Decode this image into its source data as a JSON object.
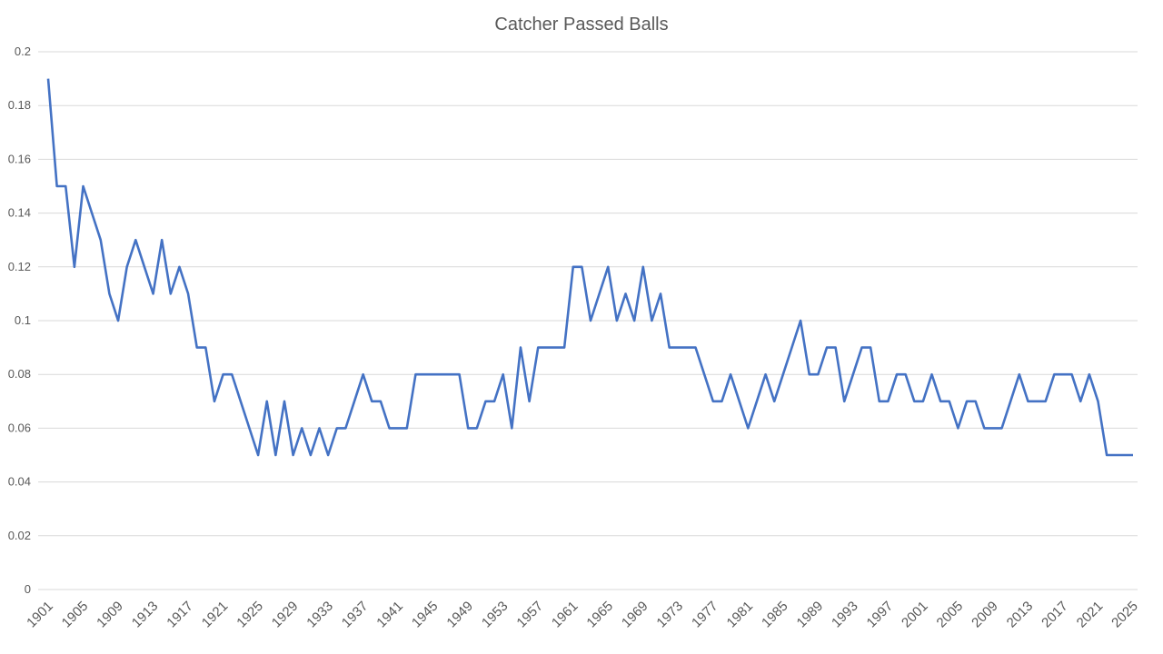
{
  "chart_data": {
    "type": "line",
    "title": "Catcher Passed Balls",
    "xlabel": "",
    "ylabel": "",
    "ylim": [
      0,
      0.2
    ],
    "yticks": [
      "0",
      "0.02",
      "0.04",
      "0.06",
      "0.08",
      "0.1",
      "0.12",
      "0.14",
      "0.16",
      "0.18",
      "0.2"
    ],
    "grid": true,
    "legend": "none",
    "x_start": 1901,
    "x_end": 2025,
    "xtick_step": 4,
    "series": [
      {
        "name": "Catcher Passed Balls",
        "color": "#4472c4",
        "values": [
          0.19,
          0.15,
          0.15,
          0.12,
          0.15,
          0.14,
          0.13,
          0.11,
          0.1,
          0.12,
          0.13,
          0.12,
          0.11,
          0.13,
          0.11,
          0.12,
          0.11,
          0.09,
          0.09,
          0.07,
          0.08,
          0.08,
          0.07,
          0.06,
          0.05,
          0.07,
          0.05,
          0.07,
          0.05,
          0.06,
          0.05,
          0.06,
          0.05,
          0.06,
          0.06,
          0.07,
          0.08,
          0.07,
          0.07,
          0.06,
          0.06,
          0.06,
          0.08,
          0.08,
          0.08,
          0.08,
          0.08,
          0.08,
          0.06,
          0.06,
          0.07,
          0.07,
          0.08,
          0.06,
          0.09,
          0.07,
          0.09,
          0.09,
          0.09,
          0.09,
          0.12,
          0.12,
          0.1,
          0.11,
          0.12,
          0.1,
          0.11,
          0.1,
          0.12,
          0.1,
          0.11,
          0.09,
          0.09,
          0.09,
          0.09,
          0.08,
          0.07,
          0.07,
          0.08,
          0.07,
          0.06,
          0.07,
          0.08,
          0.07,
          0.08,
          0.09,
          0.1,
          0.08,
          0.08,
          0.09,
          0.09,
          0.07,
          0.08,
          0.09,
          0.09,
          0.07,
          0.07,
          0.08,
          0.08,
          0.07,
          0.07,
          0.08,
          0.07,
          0.07,
          0.06,
          0.07,
          0.07,
          0.06,
          0.06,
          0.06,
          0.07,
          0.08,
          0.07,
          0.07,
          0.07,
          0.08,
          0.08,
          0.08,
          0.07,
          0.08,
          0.07,
          0.05,
          0.05,
          0.05,
          0.05
        ]
      }
    ]
  }
}
